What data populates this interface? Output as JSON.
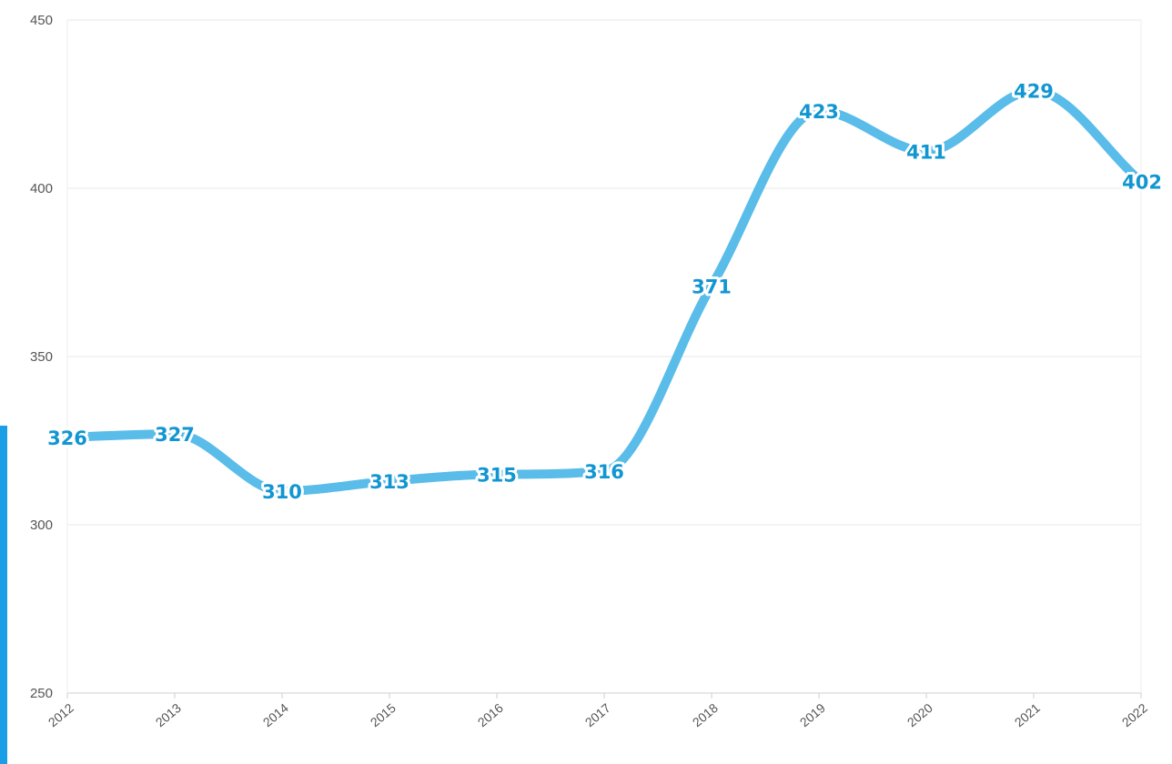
{
  "chart_data": {
    "type": "line",
    "title": "",
    "xlabel": "",
    "ylabel": "",
    "categories": [
      "2012",
      "2013",
      "2014",
      "2015",
      "2016",
      "2017",
      "2018",
      "2019",
      "2020",
      "2021",
      "2022"
    ],
    "series": [
      {
        "values": [
          326,
          327,
          310,
          313,
          315,
          316,
          371,
          423,
          411,
          429,
          402
        ],
        "color": "#59bce9"
      }
    ],
    "ylim": [
      250,
      450
    ],
    "yticks": [
      250,
      300,
      350,
      400,
      450
    ],
    "grid": true,
    "legend": "none",
    "label_color": "#1296d2"
  }
}
